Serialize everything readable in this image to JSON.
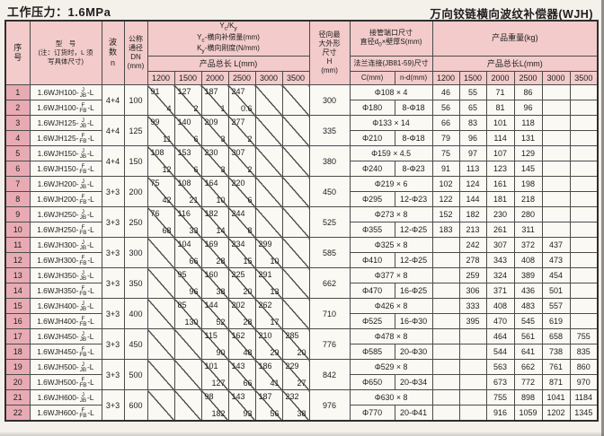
{
  "titles": {
    "pressure": "工作压力：1.6MPa",
    "product": "万向铰链横向波纹补偿器(WJH)"
  },
  "headers": {
    "seq": [
      "序",
      "号"
    ],
    "model": [
      "型　号",
      "(注：订货时，L 须",
      "写具体尺寸)"
    ],
    "n": [
      "波",
      "数",
      "n"
    ],
    "dn": [
      "公称",
      "通径",
      "DN",
      "(mm)"
    ],
    "yk_line1": [
      "Y",
      "c",
      "/K",
      "y"
    ],
    "yk_line2": [
      "Y",
      "c",
      "-横向补偿量(mm)"
    ],
    "yk_line3": [
      "K",
      "y",
      "-横向刚度(N/mm)"
    ],
    "l_title": "产品总长 L(mm)",
    "h": [
      "径向最",
      "大外形",
      "尺寸",
      "H",
      "(mm)"
    ],
    "pipe_line1": "接管端口尺寸",
    "pipe_line2": [
      "直径d",
      "0",
      "×壁厚S(mm)"
    ],
    "flange": "法兰连接(JB81-59)尺寸",
    "c_col": "C(mm)",
    "nd_col": "n-d(mm)",
    "weight_title": "产品重量(kg)",
    "l_title_right": "产品总长L(mm)",
    "l_columns": [
      "1200",
      "1500",
      "2000",
      "2500",
      "3000",
      "3500"
    ]
  },
  "groups": [
    {
      "rows": [
        {
          "seq": "1",
          "prefix": "1.6WJH100-",
          "top": "J",
          "bottom": "JB",
          "suffix": "-L"
        },
        {
          "seq": "2",
          "prefix": "1.6WJH100-",
          "top": "F",
          "bottom": "FB",
          "suffix": "-L"
        }
      ],
      "n": "4+4",
      "dn": "100",
      "h": "300",
      "yk": [
        {
          "yc": "91",
          "ky": "4"
        },
        {
          "yc": "127",
          "ky": "2"
        },
        {
          "yc": "187",
          "ky": "1"
        },
        {
          "yc": "247",
          "ky": "0.6"
        },
        null,
        null
      ],
      "pipe": "Φ108 × 4",
      "flange_c": "Φ180",
      "flange_nd": "8-Φ18",
      "weights_j": [
        "46",
        "55",
        "71",
        "86",
        "",
        ""
      ],
      "weights_f": [
        "56",
        "65",
        "81",
        "96",
        "",
        ""
      ]
    },
    {
      "rows": [
        {
          "seq": "3",
          "prefix": "1.6WJH125-",
          "top": "J",
          "bottom": "JB",
          "suffix": "-L"
        },
        {
          "seq": "4",
          "prefix": "1.6WJH125-",
          "top": "F",
          "bottom": "FB",
          "suffix": "-L"
        }
      ],
      "n": "4+4",
      "dn": "125",
      "h": "335",
      "yk": [
        {
          "yc": "99",
          "ky": "11"
        },
        {
          "yc": "140",
          "ky": "6"
        },
        {
          "yc": "209",
          "ky": "3"
        },
        {
          "yc": "277",
          "ky": "2"
        },
        null,
        null
      ],
      "pipe": "Φ133 × 14",
      "flange_c": "Φ210",
      "flange_nd": "8-Φ18",
      "weights_j": [
        "66",
        "83",
        "101",
        "118",
        "",
        ""
      ],
      "weights_f": [
        "79",
        "96",
        "114",
        "131",
        "",
        ""
      ]
    },
    {
      "rows": [
        {
          "seq": "5",
          "prefix": "1.6WJH150-",
          "top": "J",
          "bottom": "JB",
          "suffix": "-L"
        },
        {
          "seq": "6",
          "prefix": "1.6WJH150-",
          "top": "F",
          "bottom": "FB",
          "suffix": "-L"
        }
      ],
      "n": "4+4",
      "dn": "150",
      "h": "380",
      "yk": [
        {
          "yc": "108",
          "ky": "12"
        },
        {
          "yc": "153",
          "ky": "6"
        },
        {
          "yc": "230",
          "ky": "3"
        },
        {
          "yc": "307",
          "ky": "2"
        },
        null,
        null
      ],
      "pipe": "Φ159 × 4.5",
      "flange_c": "Φ240",
      "flange_nd": "8-Φ23",
      "weights_j": [
        "75",
        "97",
        "107",
        "129",
        "",
        ""
      ],
      "weights_f": [
        "91",
        "113",
        "123",
        "145",
        "",
        ""
      ]
    },
    {
      "rows": [
        {
          "seq": "7",
          "prefix": "1.6WJH200-",
          "top": "J",
          "bottom": "JB",
          "suffix": "-L"
        },
        {
          "seq": "8",
          "prefix": "1.6WJH200-",
          "top": "F",
          "bottom": "FB",
          "suffix": "-L"
        }
      ],
      "n": "3+3",
      "dn": "200",
      "h": "450",
      "yk": [
        {
          "yc": "75",
          "ky": "42"
        },
        {
          "yc": "108",
          "ky": "21"
        },
        {
          "yc": "164",
          "ky": "10"
        },
        {
          "yc": "220",
          "ky": "6"
        },
        null,
        null
      ],
      "pipe": "Φ219 × 6",
      "flange_c": "Φ295",
      "flange_nd": "12-Φ23",
      "weights_j": [
        "102",
        "124",
        "161",
        "198",
        "",
        ""
      ],
      "weights_f": [
        "122",
        "144",
        "181",
        "218",
        "",
        ""
      ]
    },
    {
      "rows": [
        {
          "seq": "9",
          "prefix": "1.6WJH250-",
          "top": "J",
          "bottom": "JB",
          "suffix": "-L"
        },
        {
          "seq": "10",
          "prefix": "1.6WJH250-",
          "top": "F",
          "bottom": "FB",
          "suffix": "-L"
        }
      ],
      "n": "3+3",
      "dn": "250",
      "h": "525",
      "yk": [
        {
          "yc": "76",
          "ky": "68"
        },
        {
          "yc": "116",
          "ky": "33"
        },
        {
          "yc": "182",
          "ky": "14"
        },
        {
          "yc": "244",
          "ky": "8"
        },
        null,
        null
      ],
      "pipe": "Φ273 × 8",
      "flange_c": "Φ355",
      "flange_nd": "12-Φ25",
      "weights_j": [
        "152",
        "182",
        "230",
        "280",
        "",
        ""
      ],
      "weights_f": [
        "183",
        "213",
        "261",
        "311",
        "",
        ""
      ]
    },
    {
      "rows": [
        {
          "seq": "11",
          "prefix": "1.6WJH300-",
          "top": "J",
          "bottom": "JB",
          "suffix": "-L"
        },
        {
          "seq": "12",
          "prefix": "1.6WJH300-",
          "top": "F",
          "bottom": "FB",
          "suffix": "-L"
        }
      ],
      "n": "3+3",
      "dn": "300",
      "h": "585",
      "yk": [
        null,
        {
          "yc": "104",
          "ky": "66"
        },
        {
          "yc": "169",
          "ky": "28"
        },
        {
          "yc": "234",
          "ky": "15"
        },
        {
          "yc": "299",
          "ky": "10"
        },
        null
      ],
      "pipe": "Φ325 × 8",
      "flange_c": "Φ410",
      "flange_nd": "12-Φ25",
      "weights_j": [
        "",
        "242",
        "307",
        "372",
        "437",
        ""
      ],
      "weights_f": [
        "",
        "278",
        "343",
        "408",
        "473",
        ""
      ]
    },
    {
      "rows": [
        {
          "seq": "13",
          "prefix": "1.6WJH350-",
          "top": "J",
          "bottom": "JB",
          "suffix": "-L"
        },
        {
          "seq": "14",
          "prefix": "1.6WJH350-",
          "top": "F",
          "bottom": "FB",
          "suffix": "-L"
        }
      ],
      "n": "3+3",
      "dn": "350",
      "h": "662",
      "yk": [
        null,
        {
          "yc": "95",
          "ky": "96"
        },
        {
          "yc": "160",
          "ky": "38"
        },
        {
          "yc": "225",
          "ky": "20"
        },
        {
          "yc": "291",
          "ky": "13"
        },
        null
      ],
      "pipe": "Φ377 × 8",
      "flange_c": "Φ470",
      "flange_nd": "16-Φ25",
      "weights_j": [
        "",
        "259",
        "324",
        "389",
        "454",
        ""
      ],
      "weights_f": [
        "",
        "306",
        "371",
        "436",
        "501",
        ""
      ]
    },
    {
      "rows": [
        {
          "seq": "15",
          "prefix": "1.6WJH400-",
          "top": "J",
          "bottom": "JB",
          "suffix": "-L"
        },
        {
          "seq": "16",
          "prefix": "1.6WJH400-",
          "top": "F",
          "bottom": "FB",
          "suffix": "-L"
        }
      ],
      "n": "3+3",
      "dn": "400",
      "h": "710",
      "yk": [
        null,
        {
          "yc": "85",
          "ky": "130"
        },
        {
          "yc": "144",
          "ky": "52"
        },
        {
          "yc": "202",
          "ky": "28"
        },
        {
          "yc": "262",
          "ky": "17"
        },
        null
      ],
      "pipe": "Φ426 × 8",
      "flange_c": "Φ525",
      "flange_nd": "16-Φ30",
      "weights_j": [
        "",
        "333",
        "408",
        "483",
        "557",
        ""
      ],
      "weights_f": [
        "",
        "395",
        "470",
        "545",
        "619",
        ""
      ]
    },
    {
      "rows": [
        {
          "seq": "17",
          "prefix": "1.6WJH450-",
          "top": "J",
          "bottom": "JB",
          "suffix": "-L"
        },
        {
          "seq": "18",
          "prefix": "1.6WJH450-",
          "top": "F",
          "bottom": "FB",
          "suffix": "-L"
        }
      ],
      "n": "3+3",
      "dn": "450",
      "h": "776",
      "yk": [
        null,
        null,
        {
          "yc": "115",
          "ky": "90"
        },
        {
          "yc": "162",
          "ky": "48"
        },
        {
          "yc": "210",
          "ky": "29"
        },
        {
          "yc": "285",
          "ky": "20"
        }
      ],
      "pipe": "Φ478 × 8",
      "flange_c": "Φ585",
      "flange_nd": "20-Φ30",
      "weights_j": [
        "",
        "",
        "464",
        "561",
        "658",
        "755"
      ],
      "weights_f": [
        "",
        "",
        "544",
        "641",
        "738",
        "835"
      ]
    },
    {
      "rows": [
        {
          "seq": "19",
          "prefix": "1.6WJH500-",
          "top": "J",
          "bottom": "JB",
          "suffix": "-L"
        },
        {
          "seq": "20",
          "prefix": "1.6WJH500-",
          "top": "F",
          "bottom": "FB",
          "suffix": "-L"
        }
      ],
      "n": "3+3",
      "dn": "500",
      "h": "842",
      "yk": [
        null,
        null,
        {
          "yc": "101",
          "ky": "127"
        },
        {
          "yc": "143",
          "ky": "66"
        },
        {
          "yc": "186",
          "ky": "41"
        },
        {
          "yc": "229",
          "ky": "27"
        }
      ],
      "pipe": "Φ529 × 8",
      "flange_c": "Φ650",
      "flange_nd": "20-Φ34",
      "weights_j": [
        "",
        "",
        "563",
        "662",
        "761",
        "860"
      ],
      "weights_f": [
        "",
        "",
        "673",
        "772",
        "871",
        "970"
      ]
    },
    {
      "rows": [
        {
          "seq": "21",
          "prefix": "1.6WJH600-",
          "top": "J",
          "bottom": "JB",
          "suffix": "-L"
        },
        {
          "seq": "22",
          "prefix": "1.6WJH600-",
          "top": "F",
          "bottom": "FB",
          "suffix": "-L"
        }
      ],
      "n": "3+3",
      "dn": "600",
      "h": "976",
      "yk": [
        null,
        null,
        {
          "yc": "98",
          "ky": "182"
        },
        {
          "yc": "143",
          "ky": "93"
        },
        {
          "yc": "187",
          "ky": "56"
        },
        {
          "yc": "232",
          "ky": "38"
        }
      ],
      "pipe": "Φ630 × 8",
      "flange_c": "Φ770",
      "flange_nd": "20-Φ41",
      "weights_j": [
        "",
        "",
        "755",
        "898",
        "1041",
        "1184"
      ],
      "weights_f": [
        "",
        "",
        "916",
        "1059",
        "1202",
        "1345"
      ]
    }
  ]
}
